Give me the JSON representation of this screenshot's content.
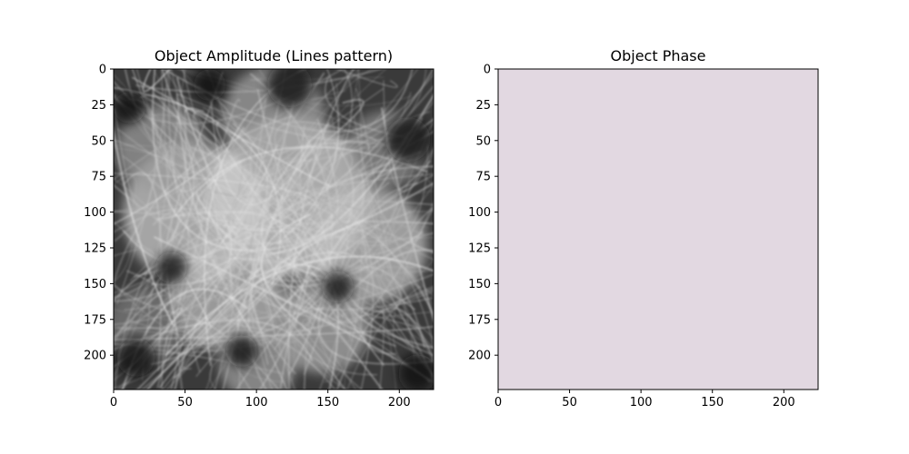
{
  "figure": {
    "background": "#ffffff"
  },
  "chart_data": [
    {
      "type": "heatmap",
      "title": "Object Amplitude (Lines pattern)",
      "image_size": [
        224,
        224
      ],
      "colormap": "gray",
      "content_description": "",
      "xlim": [
        0,
        224
      ],
      "ylim": [
        224,
        0
      ],
      "xticks": [
        0,
        50,
        100,
        150,
        200
      ],
      "yticks": [
        0,
        25,
        50,
        75,
        100,
        125,
        150,
        175,
        200
      ],
      "xlabel": "",
      "ylabel": "",
      "grid": false
    },
    {
      "type": "heatmap",
      "title": "Object Phase",
      "image_size": [
        224,
        224
      ],
      "colormap": "twilight",
      "uniform_value_color": "#e2d8e1",
      "xlim": [
        0,
        224
      ],
      "ylim": [
        224,
        0
      ],
      "xticks": [
        0,
        50,
        100,
        150,
        200
      ],
      "yticks": [
        0,
        25,
        50,
        75,
        100,
        125,
        150,
        175,
        200
      ],
      "xlabel": "",
      "ylabel": "",
      "grid": false
    }
  ]
}
